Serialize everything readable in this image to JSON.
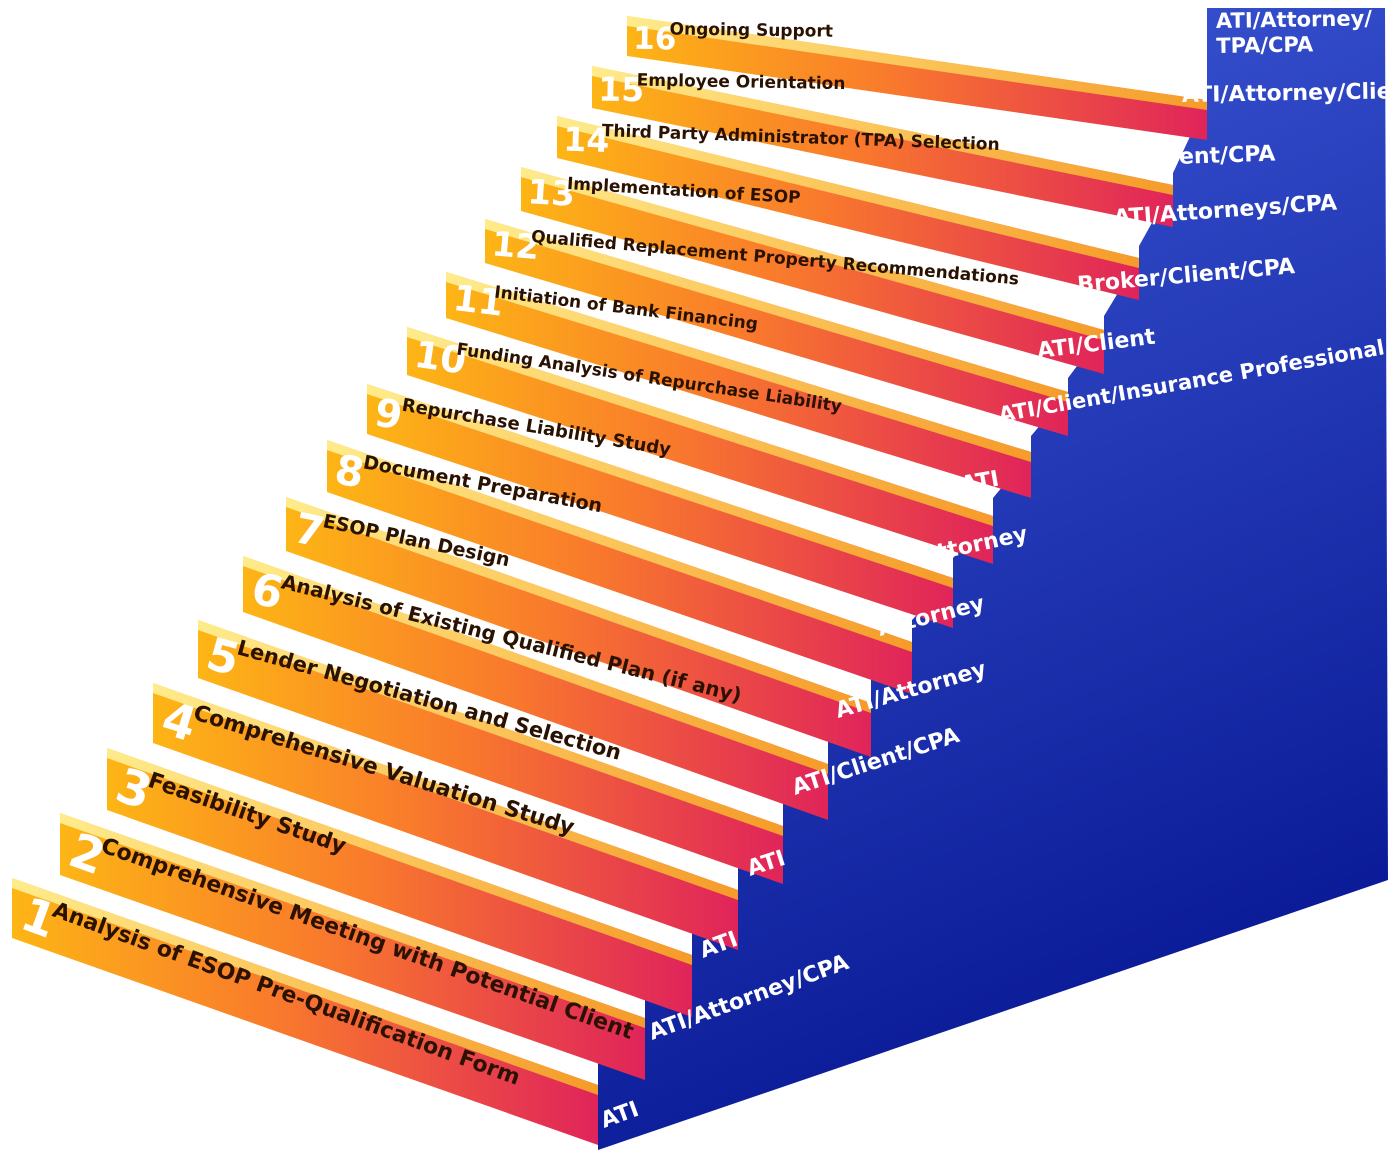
{
  "steps": [
    {
      "number": "1",
      "label": "Analysis of ESOP Pre-Qualification Form",
      "party": "ATI"
    },
    {
      "number": "2",
      "label": "Comprehensive Meeting with Potential Client",
      "party": "ATI/Attorney/CPA"
    },
    {
      "number": "3",
      "label": "Feasibility Study",
      "party": "ATI"
    },
    {
      "number": "4",
      "label": "Comprehensive Valuation Study",
      "party": "ATI"
    },
    {
      "number": "5",
      "label": "Lender Negotiation and Selection",
      "party": "ATI/Client/CPA"
    },
    {
      "number": "6",
      "label": "Analysis of Existing Qualified Plan (if any)",
      "party": "ATI/Attorney"
    },
    {
      "number": "7",
      "label": "ESOP Plan Design",
      "party": "Attorney"
    },
    {
      "number": "8",
      "label": "Document Preparation",
      "party": "Attorney"
    },
    {
      "number": "9",
      "label": "Repurchase Liability Study",
      "party": "ATI"
    },
    {
      "number": "10",
      "label": "Funding Analysis of Repurchase Liability",
      "party": "ATI/Client/Insurance Professional"
    },
    {
      "number": "11",
      "label": "Initiation of Bank Financing",
      "party": "ATI/Client"
    },
    {
      "number": "12",
      "label": "Qualified Replacement Property Recommendations",
      "party": "Broker/Client/CPA"
    },
    {
      "number": "13",
      "label": "Implementation of ESOP",
      "party": "ATI/Attorneys/CPA"
    },
    {
      "number": "14",
      "label": "Third Party Administrator (TPA) Selection",
      "party": "Client/CPA"
    },
    {
      "number": "15",
      "label": "Employee Orientation",
      "party": "ATI/Attorney/Client"
    },
    {
      "number": "16",
      "label": "Ongoing Support",
      "party": "ATI/Attorney/TPA/CPA"
    }
  ],
  "colors": {
    "riser_start": "#fdb515",
    "riser_mid": "#f97a2c",
    "riser_end": "#e0245a",
    "tread_light": "#fff5a0",
    "tread_dark": "#f9b020",
    "side_top": "#3f5bd9",
    "side_bottom": "#0a1a96"
  }
}
